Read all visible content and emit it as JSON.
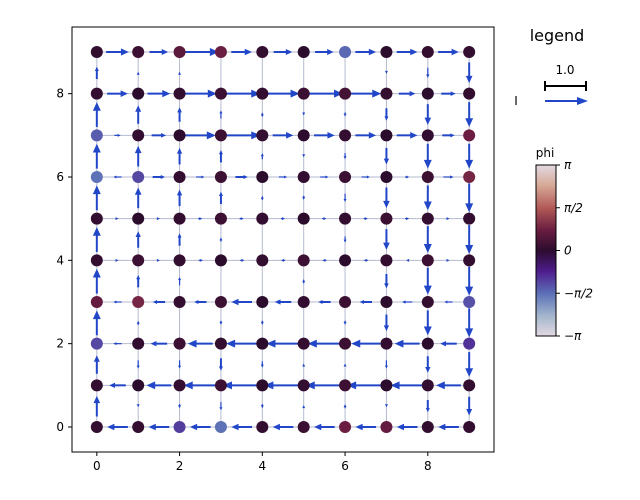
{
  "chart_data": {
    "type": "scatter",
    "subtype": "lattice current plot (nodes colored by phase, arrows for currents)",
    "xlim": [
      -0.6,
      9.6
    ],
    "ylim": [
      -0.6,
      9.6
    ],
    "xticks": [
      "0",
      "2",
      "4",
      "6",
      "8"
    ],
    "yticks": [
      "0",
      "2",
      "4",
      "6",
      "8"
    ],
    "grid_size": [
      10,
      10
    ],
    "edge_color": "#b4bad0",
    "arrow_color": "#2246c8",
    "legend": {
      "title": "legend",
      "scale_value": "1.0",
      "current_label": "I"
    },
    "colorbar": {
      "label": "phi",
      "range": [
        -3.14159,
        3.14159
      ],
      "tick_labels": [
        "π",
        "π/2",
        "0",
        "−π/2",
        "−π"
      ],
      "colormap": "twilight_shifted"
    },
    "node_phase_rows_from_top": [
      [
        0.1,
        0.2,
        0.6,
        0.8,
        0.1,
        0.0,
        -1.5,
        0.0,
        0.1,
        0.1
      ],
      [
        0.1,
        0.0,
        0.1,
        0.2,
        0.1,
        0.2,
        0.3,
        0.1,
        0.0,
        0.1
      ],
      [
        -1.4,
        0.1,
        0.0,
        0.2,
        0.1,
        0.0,
        0.1,
        0.0,
        0.1,
        0.8
      ],
      [
        -1.6,
        -1.2,
        0.1,
        0.2,
        0.0,
        0.1,
        0.2,
        0.0,
        0.2,
        0.9
      ],
      [
        0.1,
        0.0,
        0.1,
        0.2,
        0.1,
        0.0,
        0.1,
        0.2,
        0.1,
        0.1
      ],
      [
        0.1,
        0.2,
        0.1,
        0.0,
        0.1,
        0.2,
        0.0,
        0.1,
        0.2,
        0.1
      ],
      [
        0.7,
        0.9,
        0.1,
        0.2,
        0.0,
        0.1,
        0.2,
        0.0,
        0.1,
        -1.3
      ],
      [
        -1.2,
        0.1,
        0.2,
        0.1,
        0.0,
        0.1,
        0.2,
        0.1,
        0.0,
        -1.0
      ],
      [
        0.1,
        0.0,
        0.1,
        0.2,
        0.0,
        0.1,
        0.2,
        0.0,
        0.1,
        0.1
      ],
      [
        0.1,
        0.1,
        -1.1,
        -1.6,
        0.1,
        0.2,
        0.8,
        0.7,
        0.1,
        0.1
      ]
    ],
    "horizontal_currents_rows_from_top": [
      [
        0.55,
        0.45,
        0.9,
        0.5,
        0.45,
        0.45,
        0.5,
        0.5,
        0.5
      ],
      [
        0.5,
        0.55,
        0.8,
        0.9,
        0.8,
        0.9,
        0.75,
        0.4,
        0.35
      ],
      [
        0.15,
        0.35,
        0.75,
        0.9,
        0.5,
        0.5,
        0.5,
        0.5,
        0.3
      ],
      [
        -0.2,
        0.3,
        0.2,
        0.3,
        0.2,
        0.2,
        0.2,
        0.1,
        0.25
      ],
      [
        0.05,
        0.05,
        0.1,
        0.1,
        0.1,
        0.1,
        0.1,
        0.1,
        0.05
      ],
      [
        0.05,
        0.05,
        -0.1,
        -0.1,
        -0.1,
        -0.1,
        -0.1,
        -0.05,
        0.05
      ],
      [
        -0.2,
        -0.3,
        -0.3,
        -0.5,
        -0.4,
        -0.3,
        -0.3,
        -0.25,
        -0.2
      ],
      [
        -0.2,
        -0.4,
        -0.6,
        -0.75,
        -0.8,
        -0.8,
        -0.7,
        -0.6,
        -0.4
      ],
      [
        -0.4,
        -0.6,
        -0.8,
        -0.9,
        -0.9,
        -0.9,
        -0.9,
        -0.8,
        -0.6
      ],
      [
        -0.5,
        -0.5,
        -0.5,
        -0.5,
        -0.5,
        -0.5,
        -0.5,
        -0.5,
        -0.5
      ]
    ],
    "vertical_currents_columns_from_left": [
      [
        0.3,
        0.6,
        0.6,
        0.6,
        0.6,
        0.6,
        0.6,
        0.45,
        0.5
      ],
      [
        0.05,
        0.45,
        0.5,
        0.5,
        0.4,
        0.3,
        0.1,
        -0.2,
        -0.05
      ],
      [
        0.05,
        0.35,
        0.4,
        0.4,
        0.3,
        0.2,
        0.0,
        -0.2,
        -0.1
      ],
      [
        0.0,
        0.2,
        0.3,
        0.3,
        0.1,
        0.0,
        -0.1,
        -0.3,
        -0.2
      ],
      [
        0.0,
        0.1,
        0.15,
        0.1,
        0.0,
        0.0,
        -0.1,
        -0.15,
        -0.1
      ],
      [
        0.0,
        -0.05,
        -0.05,
        -0.1,
        0.0,
        0.1,
        0.0,
        0.05,
        0.05
      ],
      [
        0.0,
        -0.1,
        -0.15,
        -0.2,
        -0.15,
        0.0,
        -0.1,
        0.05,
        0.1
      ],
      [
        -0.05,
        -0.3,
        -0.4,
        -0.5,
        -0.5,
        -0.35,
        -0.4,
        -0.2,
        -0.05
      ],
      [
        -0.25,
        -0.5,
        -0.6,
        -0.6,
        -0.65,
        -0.65,
        -0.6,
        -0.4,
        -0.3
      ],
      [
        -0.5,
        -0.6,
        -0.6,
        -0.7,
        -0.7,
        -0.7,
        -0.7,
        -0.6,
        -0.45
      ]
    ]
  }
}
